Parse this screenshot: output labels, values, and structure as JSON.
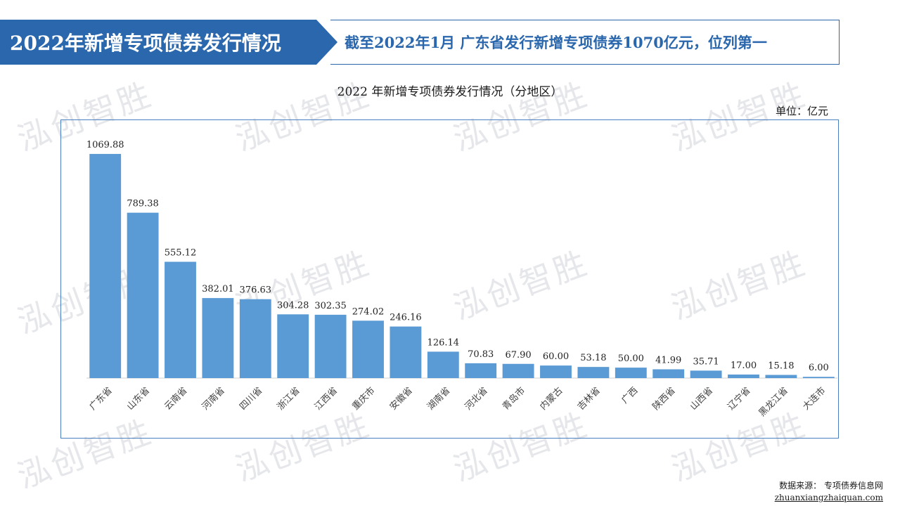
{
  "header": {
    "title": "2022年新增专项债券发行情况",
    "subtitle": "截至2022年1月   广东省发行新增专项债券1070亿元，位列第一"
  },
  "colors": {
    "primary": "#2a67ad",
    "bar": "#5b9bd5",
    "frame": "#4a7fc0",
    "watermark": "#e6e7ea"
  },
  "watermark": {
    "text": "泓创智胜"
  },
  "chart_data": {
    "type": "bar",
    "title": "2022 年新增专项债券发行情况（分地区）",
    "unit": "单位：亿元",
    "categories": [
      "广东省",
      "山东省",
      "云南省",
      "河南省",
      "四川省",
      "浙江省",
      "江西省",
      "重庆市",
      "安徽省",
      "湖南省",
      "河北省",
      "青岛市",
      "内蒙古",
      "吉林省",
      "广西",
      "陕西省",
      "山西省",
      "辽宁省",
      "黑龙江省",
      "大连市"
    ],
    "values": [
      1069.88,
      789.38,
      555.12,
      382.01,
      376.63,
      304.28,
      302.35,
      274.02,
      246.16,
      126.14,
      70.83,
      67.9,
      60.0,
      53.18,
      50.0,
      41.99,
      35.71,
      17.0,
      15.18,
      6.0
    ],
    "value_labels": [
      "1069.88",
      "789.38",
      "555.12",
      "382.01",
      "376.63",
      "304.28",
      "302.35",
      "274.02",
      "246.16",
      "126.14",
      "70.83",
      "67.90",
      "60.00",
      "53.18",
      "50.00",
      "41.99",
      "35.71",
      "17.00",
      "15.18",
      "6.00"
    ],
    "ylim": [
      0,
      1070
    ],
    "grid": false,
    "legend": "none"
  },
  "source": {
    "label": "数据来源：  专项债券信息网",
    "url": "zhuanxiangzhaiquan.com"
  }
}
